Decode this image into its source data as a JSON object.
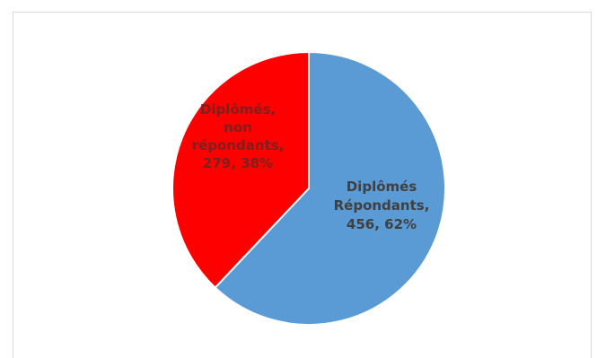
{
  "chart_data": {
    "type": "pie",
    "title": "",
    "slices": [
      {
        "label_lines": [
          "Diplômés",
          "Répondants,",
          "456, 62%"
        ],
        "value": 456,
        "percent": 62,
        "color": "#5b9bd5",
        "label_color": "#404040"
      },
      {
        "label_lines": [
          "Diplômés,",
          "non",
          "répondants,",
          "279, 38%"
        ],
        "value": 279,
        "percent": 38,
        "color": "#ff0000",
        "label_color": "#7f1f1f"
      }
    ],
    "start_angle": "12 o'clock",
    "direction": "clockwise",
    "legend": "none",
    "slice_border_color": "#ffffff"
  }
}
